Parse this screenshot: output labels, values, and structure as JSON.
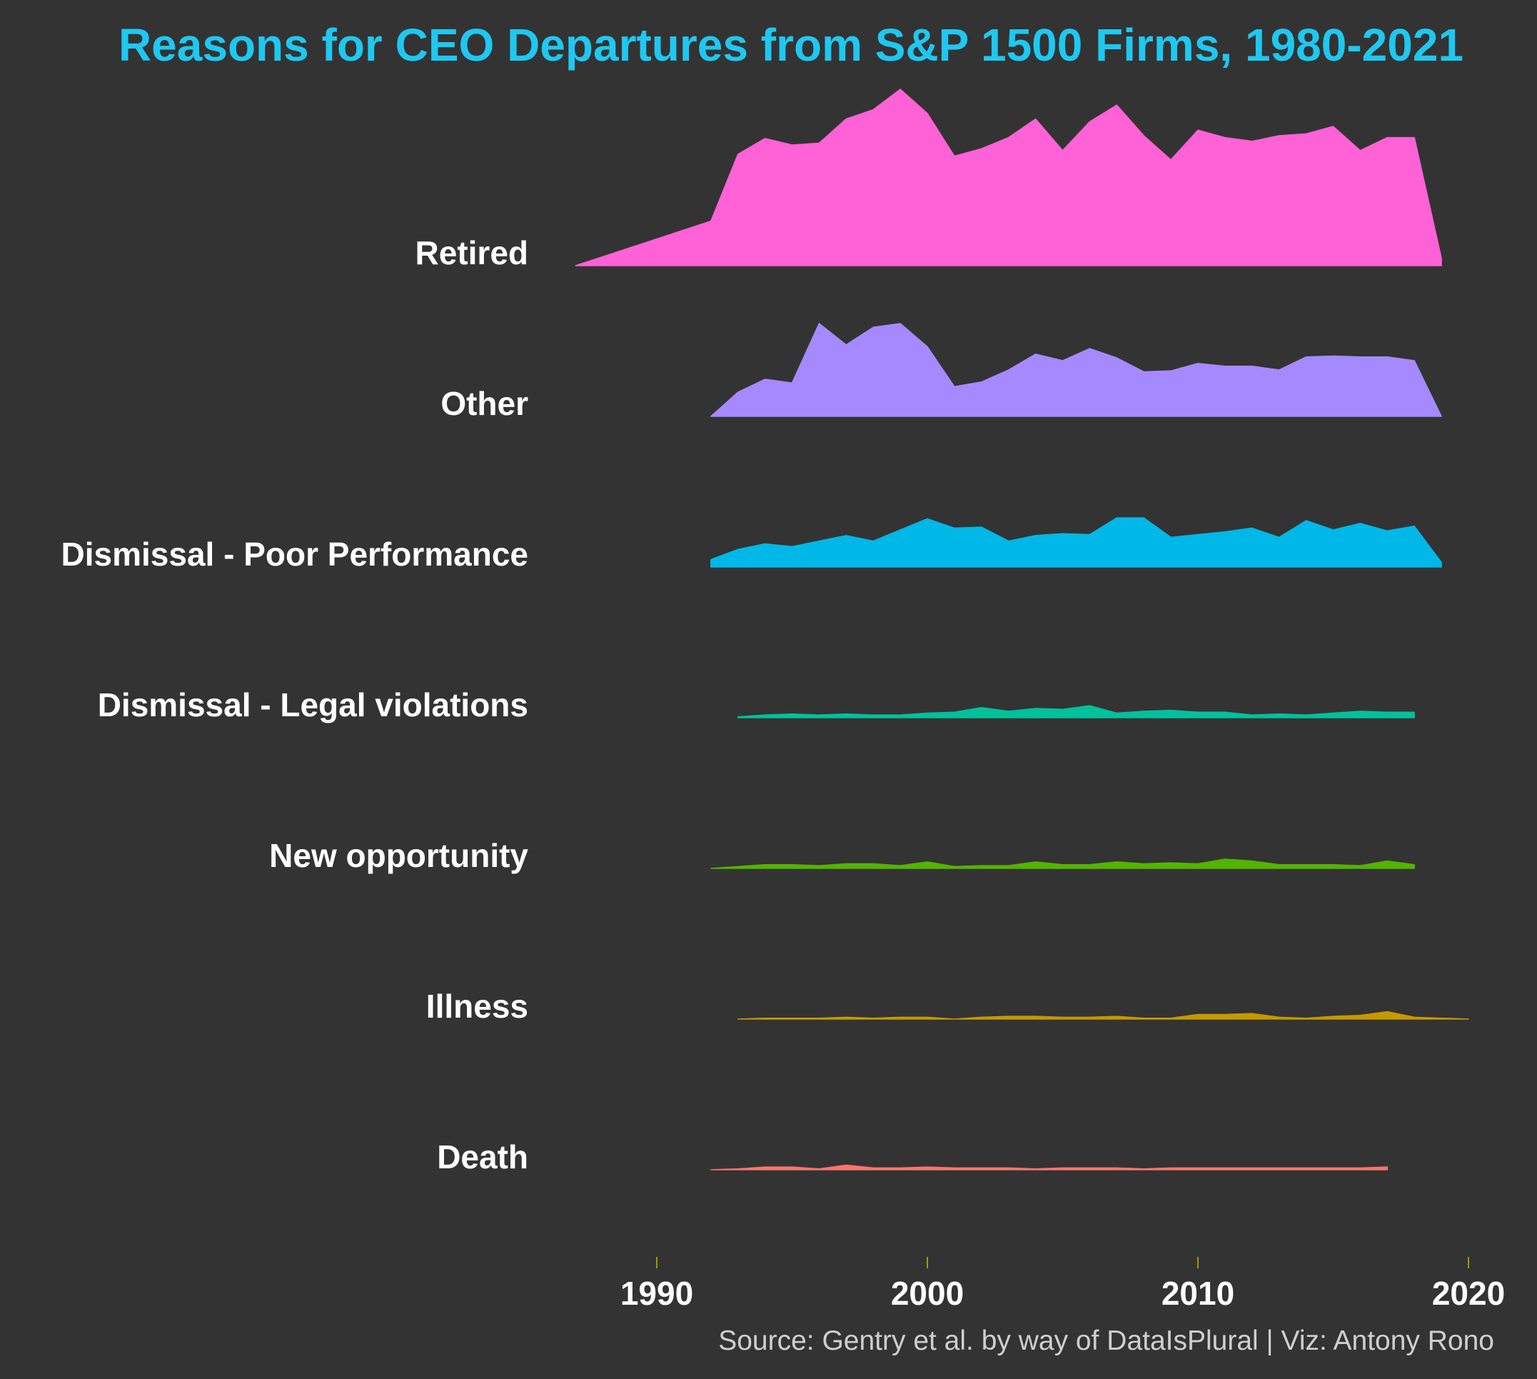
{
  "chart_data": {
    "type": "area",
    "title": "Reasons for CEO Departures from S&P 1500 Firms, 1980-2021",
    "caption": "Source: Gentry et al. by way of DataIsPlural | Viz: Antony Rono",
    "xlabel": "",
    "ylabel": "",
    "xlim": [
      1989,
      2021
    ],
    "x_ticks": [
      1990,
      2000,
      2010,
      2020
    ],
    "x_tick_labels": [
      "1990",
      "2000",
      "2010",
      "2020"
    ],
    "grid": false,
    "legend": "none",
    "series": [
      {
        "name": "Retired",
        "color": "#ff61d6",
        "x": [
          1987,
          1992,
          1993,
          1994,
          1995,
          1996,
          1997,
          1998,
          1999,
          2000,
          2001,
          2002,
          2003,
          2004,
          2005,
          2006,
          2007,
          2008,
          2009,
          2010,
          2011,
          2012,
          2013,
          2014,
          2015,
          2016,
          2017,
          2018,
          2019
        ],
        "values": [
          0,
          48,
          120,
          137,
          130,
          132,
          158,
          168,
          190,
          164,
          118,
          126,
          138,
          158,
          124,
          155,
          173,
          140,
          114,
          146,
          138,
          134,
          140,
          142,
          150,
          124,
          138,
          138,
          8
        ]
      },
      {
        "name": "Other",
        "color": "#a58aff",
        "x": [
          1992,
          1993,
          1994,
          1995,
          1996,
          1997,
          1998,
          1999,
          2000,
          2001,
          2002,
          2003,
          2004,
          2005,
          2006,
          2007,
          2008,
          2009,
          2010,
          2011,
          2012,
          2013,
          2014,
          2015,
          2016,
          2017,
          2018,
          2019
        ],
        "values": [
          0,
          26,
          40,
          36,
          100,
          77,
          96,
          100,
          75,
          32,
          37,
          50,
          67,
          60,
          73,
          63,
          48,
          49,
          57,
          54,
          54,
          50,
          64,
          65,
          64,
          64,
          60,
          0
        ]
      },
      {
        "name": "Dismissal - Poor Performance",
        "color": "#00b8e7",
        "x": [
          1992,
          1993,
          1994,
          1995,
          1996,
          1997,
          1998,
          1999,
          2000,
          2001,
          2002,
          2003,
          2004,
          2005,
          2006,
          2007,
          2008,
          2009,
          2010,
          2011,
          2012,
          2013,
          2014,
          2015,
          2016,
          2017,
          2018,
          2019
        ],
        "values": [
          8,
          19,
          25,
          22,
          28,
          34,
          28,
          40,
          52,
          42,
          43,
          28,
          34,
          36,
          35,
          53,
          53,
          32,
          35,
          38,
          42,
          32,
          50,
          40,
          47,
          39,
          44,
          5
        ]
      },
      {
        "name": "Dismissal - Legal violations",
        "color": "#00c19a",
        "x": [
          1993,
          1994,
          1995,
          1996,
          1997,
          1998,
          1999,
          2000,
          2001,
          2002,
          2003,
          2004,
          2005,
          2006,
          2007,
          2008,
          2009,
          2010,
          2011,
          2012,
          2013,
          2014,
          2015,
          2016,
          2017,
          2018
        ],
        "values": [
          1,
          3,
          4,
          3,
          4,
          3,
          3,
          5,
          6,
          11,
          7,
          10,
          9,
          13,
          5,
          7,
          8,
          6,
          6,
          3,
          4,
          3,
          5,
          7,
          6,
          6
        ]
      },
      {
        "name": "New opportunity",
        "color": "#53b400",
        "x": [
          1992,
          1993,
          1994,
          1995,
          1996,
          1997,
          1998,
          1999,
          2000,
          2001,
          2002,
          2003,
          2004,
          2005,
          2006,
          2007,
          2008,
          2009,
          2010,
          2011,
          2012,
          2013,
          2014,
          2015,
          2016,
          2017,
          2018
        ],
        "values": [
          0,
          2,
          4,
          4,
          3,
          5,
          5,
          3,
          7,
          2,
          3,
          3,
          7,
          4,
          4,
          7,
          5,
          6,
          5,
          10,
          8,
          4,
          4,
          4,
          3,
          8,
          4
        ]
      },
      {
        "name": "Illness",
        "color": "#c49a00",
        "x": [
          1993,
          1994,
          1995,
          1996,
          1997,
          1998,
          1999,
          2000,
          2001,
          2002,
          2003,
          2004,
          2005,
          2006,
          2007,
          2008,
          2009,
          2010,
          2011,
          2012,
          2013,
          2014,
          2015,
          2016,
          2017,
          2018,
          2019,
          2020
        ],
        "values": [
          0,
          1,
          1,
          1,
          2,
          1,
          2,
          2,
          0,
          2,
          3,
          3,
          2,
          2,
          3,
          1,
          1,
          5,
          5,
          6,
          2,
          1,
          3,
          4,
          8,
          2,
          1,
          0
        ]
      },
      {
        "name": "Death",
        "color": "#f8766d",
        "x": [
          1992,
          1993,
          1994,
          1995,
          1996,
          1997,
          1998,
          1999,
          2000,
          2001,
          2002,
          2003,
          2004,
          2005,
          2006,
          2007,
          2008,
          2009,
          2010,
          2011,
          2012,
          2013,
          2014,
          2015,
          2016,
          2017
        ],
        "values": [
          0,
          1,
          3,
          3,
          1,
          5,
          2,
          2,
          3,
          2,
          2,
          2,
          1,
          2,
          2,
          2,
          1,
          2,
          2,
          2,
          2,
          2,
          2,
          2,
          2,
          3
        ]
      }
    ]
  }
}
